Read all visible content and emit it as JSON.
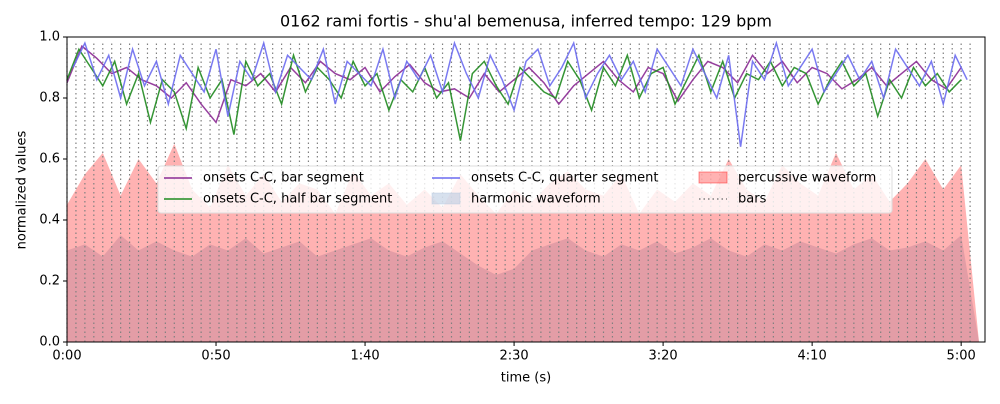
{
  "chart_data": {
    "type": "line",
    "title": "0162 rami fortis - shu'al bemenusa, inferred tempo: 129 bpm",
    "xlabel": "time (s)",
    "ylabel": "normalized values",
    "xlim": [
      0,
      308
    ],
    "ylim": [
      0,
      1
    ],
    "xticks": [
      {
        "value": 0,
        "label": "0:00"
      },
      {
        "value": 50,
        "label": "0:50"
      },
      {
        "value": 100,
        "label": "1:40"
      },
      {
        "value": 150,
        "label": "2:30"
      },
      {
        "value": 200,
        "label": "3:20"
      },
      {
        "value": 250,
        "label": "4:10"
      },
      {
        "value": 300,
        "label": "5:00"
      }
    ],
    "yticks": [
      {
        "value": 0,
        "label": "0.0"
      },
      0.2,
      0.4,
      0.6,
      0.8,
      {
        "value": 1,
        "label": "1.0"
      }
    ],
    "legend": "upper center",
    "series": [
      {
        "name": "onsets C-C, bar segment",
        "type": "line",
        "color": "#8b2a94",
        "x": [
          0,
          5,
          10,
          15,
          20,
          25,
          30,
          35,
          40,
          45,
          50,
          55,
          60,
          65,
          70,
          75,
          80,
          85,
          90,
          95,
          100,
          105,
          110,
          115,
          120,
          125,
          130,
          135,
          140,
          145,
          150,
          155,
          160,
          165,
          170,
          175,
          180,
          185,
          190,
          195,
          200,
          205,
          210,
          215,
          220,
          225,
          230,
          235,
          240,
          245,
          250,
          255,
          260,
          265,
          270,
          275,
          280,
          285,
          290,
          295,
          300
        ],
        "values": [
          0.85,
          0.97,
          0.93,
          0.88,
          0.9,
          0.86,
          0.84,
          0.8,
          0.85,
          0.78,
          0.72,
          0.86,
          0.84,
          0.88,
          0.82,
          0.9,
          0.85,
          0.92,
          0.88,
          0.86,
          0.9,
          0.82,
          0.87,
          0.91,
          0.85,
          0.82,
          0.83,
          0.8,
          0.88,
          0.82,
          0.86,
          0.9,
          0.85,
          0.78,
          0.84,
          0.88,
          0.92,
          0.86,
          0.82,
          0.9,
          0.88,
          0.79,
          0.86,
          0.92,
          0.9,
          0.85,
          0.94,
          0.88,
          0.92,
          0.85,
          0.9,
          0.88,
          0.83,
          0.86,
          0.9,
          0.84,
          0.88,
          0.92,
          0.86,
          0.83,
          0.9
        ]
      },
      {
        "name": "onsets C-C, half bar segment",
        "type": "line",
        "color": "#1f8a1f",
        "x": [
          0,
          4,
          8,
          12,
          16,
          20,
          24,
          28,
          32,
          36,
          40,
          44,
          48,
          52,
          56,
          60,
          64,
          68,
          72,
          76,
          80,
          84,
          88,
          92,
          96,
          100,
          104,
          108,
          112,
          116,
          120,
          124,
          128,
          132,
          136,
          140,
          144,
          148,
          152,
          156,
          160,
          164,
          168,
          172,
          176,
          180,
          184,
          188,
          192,
          196,
          200,
          204,
          208,
          212,
          216,
          220,
          224,
          228,
          232,
          236,
          240,
          244,
          248,
          252,
          256,
          260,
          264,
          268,
          272,
          276,
          280,
          284,
          288,
          292,
          296,
          300
        ],
        "values": [
          0.86,
          0.96,
          0.9,
          0.84,
          0.92,
          0.78,
          0.88,
          0.72,
          0.86,
          0.82,
          0.7,
          0.9,
          0.8,
          0.86,
          0.68,
          0.92,
          0.84,
          0.88,
          0.78,
          0.94,
          0.82,
          0.9,
          0.86,
          0.8,
          0.92,
          0.84,
          0.88,
          0.76,
          0.86,
          0.82,
          0.9,
          0.8,
          0.85,
          0.66,
          0.88,
          0.92,
          0.84,
          0.78,
          0.9,
          0.86,
          0.82,
          0.8,
          0.92,
          0.86,
          0.76,
          0.9,
          0.84,
          0.94,
          0.8,
          0.88,
          0.9,
          0.78,
          0.86,
          0.94,
          0.82,
          0.92,
          0.8,
          0.88,
          0.86,
          0.92,
          0.84,
          0.9,
          0.88,
          0.78,
          0.86,
          0.92,
          0.84,
          0.88,
          0.74,
          0.86,
          0.8,
          0.9,
          0.84,
          0.88,
          0.82,
          0.86
        ]
      },
      {
        "name": "onsets C-C, quarter segment",
        "type": "line",
        "color": "#6b6bf0",
        "x": [
          2,
          6,
          10,
          14,
          18,
          22,
          26,
          30,
          34,
          38,
          42,
          46,
          50,
          54,
          58,
          62,
          66,
          70,
          74,
          78,
          82,
          86,
          90,
          94,
          98,
          102,
          106,
          110,
          114,
          118,
          122,
          126,
          130,
          134,
          138,
          142,
          146,
          150,
          154,
          158,
          162,
          166,
          170,
          174,
          178,
          182,
          186,
          190,
          194,
          198,
          202,
          206,
          210,
          214,
          218,
          222,
          226,
          230,
          234,
          238,
          242,
          246,
          250,
          254,
          258,
          262,
          266,
          270,
          274,
          278,
          282,
          286,
          290,
          294,
          298,
          302
        ],
        "values": [
          0.9,
          0.98,
          0.86,
          0.94,
          0.8,
          0.96,
          0.84,
          0.92,
          0.78,
          0.94,
          0.88,
          0.82,
          0.96,
          0.74,
          0.92,
          0.86,
          0.98,
          0.82,
          0.94,
          0.9,
          0.86,
          0.96,
          0.78,
          0.92,
          0.88,
          0.84,
          0.96,
          0.8,
          0.92,
          0.86,
          0.94,
          0.82,
          0.98,
          0.88,
          0.8,
          0.94,
          0.86,
          0.76,
          0.92,
          0.96,
          0.84,
          0.9,
          0.98,
          0.8,
          0.88,
          0.94,
          0.86,
          0.92,
          0.82,
          0.96,
          0.9,
          0.84,
          0.96,
          0.88,
          0.8,
          0.94,
          0.64,
          0.92,
          0.86,
          0.98,
          0.84,
          0.9,
          0.96,
          0.82,
          0.88,
          0.94,
          0.86,
          0.92,
          0.8,
          0.96,
          0.9,
          0.84,
          0.92,
          0.78,
          0.94,
          0.86
        ]
      },
      {
        "name": "harmonic waveform",
        "type": "area",
        "color": "#b0c4de",
        "x": [
          0,
          6,
          12,
          18,
          24,
          30,
          36,
          42,
          48,
          54,
          60,
          66,
          72,
          78,
          84,
          90,
          96,
          102,
          108,
          114,
          120,
          126,
          132,
          138,
          144,
          150,
          156,
          162,
          168,
          174,
          180,
          186,
          192,
          198,
          204,
          210,
          216,
          222,
          228,
          234,
          240,
          246,
          252,
          258,
          264,
          270,
          276,
          282,
          288,
          294,
          300,
          306
        ],
        "values": [
          0.3,
          0.32,
          0.28,
          0.35,
          0.3,
          0.33,
          0.3,
          0.28,
          0.32,
          0.3,
          0.34,
          0.29,
          0.31,
          0.33,
          0.28,
          0.3,
          0.32,
          0.34,
          0.3,
          0.28,
          0.31,
          0.33,
          0.29,
          0.25,
          0.22,
          0.24,
          0.3,
          0.32,
          0.34,
          0.3,
          0.28,
          0.32,
          0.3,
          0.33,
          0.29,
          0.31,
          0.34,
          0.3,
          0.28,
          0.32,
          0.3,
          0.33,
          0.31,
          0.29,
          0.32,
          0.34,
          0.3,
          0.31,
          0.33,
          0.3,
          0.35,
          0.0
        ]
      },
      {
        "name": "percussive waveform",
        "type": "area",
        "color": "#ff0000",
        "x": [
          0,
          6,
          12,
          18,
          24,
          30,
          36,
          42,
          48,
          54,
          60,
          66,
          72,
          78,
          84,
          90,
          96,
          102,
          108,
          114,
          120,
          126,
          132,
          138,
          144,
          150,
          156,
          162,
          168,
          174,
          180,
          186,
          192,
          198,
          204,
          210,
          216,
          222,
          228,
          234,
          240,
          246,
          252,
          258,
          264,
          270,
          276,
          282,
          288,
          294,
          300,
          306
        ],
        "values": [
          0.45,
          0.55,
          0.62,
          0.48,
          0.6,
          0.52,
          0.65,
          0.5,
          0.44,
          0.58,
          0.48,
          0.55,
          0.46,
          0.52,
          0.5,
          0.42,
          0.56,
          0.48,
          0.52,
          0.45,
          0.5,
          0.44,
          0.55,
          0.48,
          0.42,
          0.5,
          0.46,
          0.52,
          0.56,
          0.5,
          0.48,
          0.55,
          0.42,
          0.5,
          0.46,
          0.52,
          0.48,
          0.6,
          0.5,
          0.46,
          0.58,
          0.52,
          0.48,
          0.62,
          0.5,
          0.55,
          0.46,
          0.52,
          0.6,
          0.5,
          0.58,
          0.0
        ]
      },
      {
        "name": "bars",
        "type": "vline",
        "color": "#808080",
        "x": [
          0,
          3,
          6,
          9,
          12,
          15,
          18,
          21,
          24,
          27,
          30,
          33,
          36,
          39,
          42,
          45,
          48,
          51,
          54,
          57,
          60,
          63,
          66,
          69,
          72,
          75,
          78,
          81,
          84,
          87,
          90,
          93,
          96,
          99,
          102,
          105,
          108,
          111,
          114,
          117,
          120,
          123,
          126,
          129,
          132,
          135,
          138,
          141,
          144,
          147,
          150,
          153,
          156,
          159,
          162,
          165,
          168,
          171,
          174,
          177,
          180,
          183,
          186,
          189,
          192,
          195,
          198,
          201,
          204,
          207,
          210,
          213,
          216,
          219,
          222,
          225,
          228,
          231,
          234,
          237,
          240,
          243,
          246,
          249,
          252,
          255,
          258,
          261,
          264,
          267,
          270,
          273,
          276,
          279,
          282,
          285,
          288,
          291,
          294,
          297,
          300,
          303
        ]
      }
    ]
  }
}
